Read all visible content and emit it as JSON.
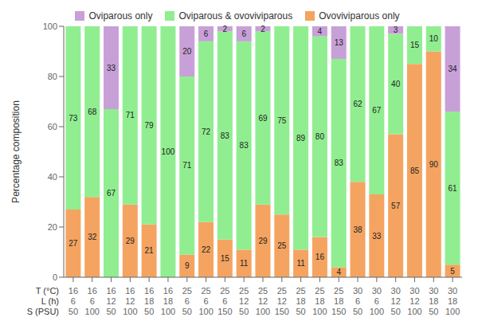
{
  "chart_data": {
    "type": "bar",
    "stacked": true,
    "ylabel": "Percentage composition",
    "categories": [
      [
        16,
        6,
        50
      ],
      [
        16,
        6,
        100
      ],
      [
        16,
        12,
        50
      ],
      [
        16,
        12,
        100
      ],
      [
        16,
        18,
        50
      ],
      [
        16,
        18,
        100
      ],
      [
        25,
        6,
        50
      ],
      [
        25,
        6,
        100
      ],
      [
        25,
        6,
        150
      ],
      [
        25,
        12,
        50
      ],
      [
        25,
        12,
        100
      ],
      [
        25,
        12,
        150
      ],
      [
        25,
        18,
        50
      ],
      [
        25,
        18,
        100
      ],
      [
        25,
        18,
        150
      ],
      [
        30,
        6,
        50
      ],
      [
        30,
        6,
        100
      ],
      [
        30,
        12,
        50
      ],
      [
        30,
        12,
        100
      ],
      [
        30,
        18,
        50
      ],
      [
        30,
        18,
        100
      ]
    ],
    "annotations": [
      "T (°C)",
      "L (h)",
      "S (PSU)"
    ],
    "series": [
      {
        "name": "Ovoviviparous only",
        "color": "#f4a460",
        "values": [
          27,
          32,
          0,
          29,
          21,
          0,
          9,
          22,
          15,
          11,
          29,
          25,
          11,
          16,
          4,
          38,
          33,
          57,
          85,
          90,
          5
        ]
      },
      {
        "name": "Oviparous & ovoviviparous",
        "color": "#90ee90",
        "values": [
          73,
          68,
          67,
          71,
          79,
          100,
          71,
          72,
          83,
          83,
          69,
          75,
          89,
          80,
          83,
          62,
          67,
          40,
          15,
          10,
          61
        ]
      },
      {
        "name": "Oviparous only",
        "color": "#c8a0d8",
        "values": [
          0,
          0,
          33,
          0,
          0,
          0,
          20,
          6,
          2,
          6,
          2,
          0,
          0,
          4,
          13,
          0,
          0,
          3,
          0,
          0,
          34
        ]
      }
    ],
    "ylim": [
      0,
      100
    ],
    "yticks": [
      0,
      20,
      40,
      60,
      80,
      100
    ],
    "grid": false,
    "legend": "top",
    "data_labels": true
  }
}
